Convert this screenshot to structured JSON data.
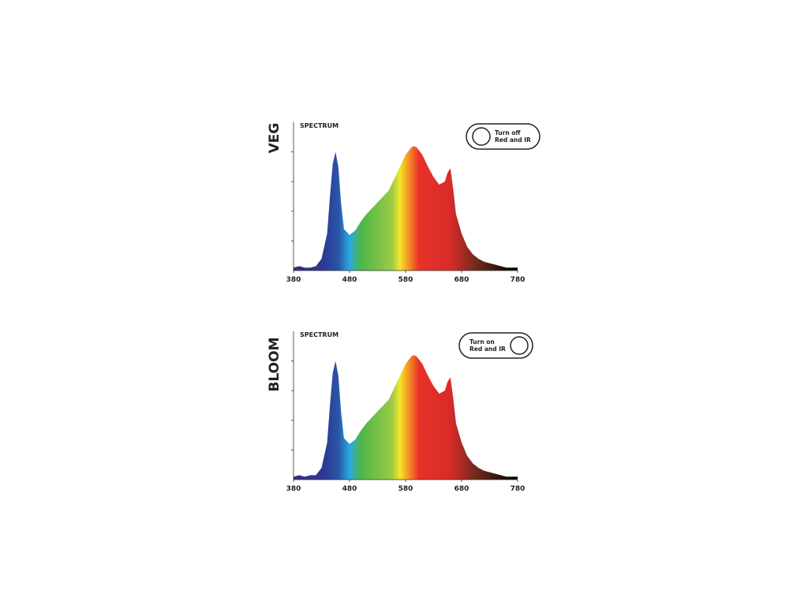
{
  "chart_data": [
    {
      "type": "area",
      "title": "VEG",
      "subtitle": "SPECTRUM",
      "toggle": [
        "Turn off",
        "Red and IR"
      ],
      "toggle_side": "left",
      "x": [
        380,
        390,
        400,
        410,
        420,
        430,
        440,
        445,
        450,
        455,
        460,
        465,
        470,
        480,
        490,
        500,
        510,
        520,
        530,
        540,
        550,
        560,
        570,
        580,
        590,
        595,
        600,
        610,
        620,
        630,
        640,
        650,
        655,
        660,
        665,
        670,
        680,
        690,
        700,
        710,
        720,
        730,
        740,
        750,
        760,
        770,
        780
      ],
      "values": [
        2,
        3,
        2,
        2,
        3,
        8,
        25,
        50,
        72,
        80,
        70,
        45,
        28,
        24,
        27,
        33,
        38,
        42,
        46,
        50,
        54,
        62,
        70,
        78,
        83,
        84,
        83,
        78,
        70,
        63,
        58,
        60,
        66,
        69,
        55,
        38,
        25,
        16,
        11,
        8,
        6,
        5,
        4,
        3,
        2,
        2,
        2
      ],
      "xlim": [
        380,
        780
      ],
      "xticks": [
        380,
        480,
        580,
        680,
        780
      ],
      "ylim": [
        0,
        100
      ],
      "yticks": [
        20,
        40,
        60,
        80
      ]
    },
    {
      "type": "area",
      "title": "BLOOM",
      "subtitle": "SPECTRUM",
      "toggle": [
        "Turn on",
        "Red and IR"
      ],
      "toggle_side": "right",
      "x": [
        380,
        390,
        400,
        410,
        420,
        430,
        440,
        445,
        450,
        455,
        460,
        465,
        470,
        480,
        490,
        500,
        510,
        520,
        530,
        540,
        550,
        560,
        570,
        580,
        590,
        595,
        600,
        610,
        620,
        630,
        640,
        650,
        655,
        660,
        665,
        670,
        680,
        690,
        700,
        710,
        720,
        730,
        740,
        750,
        760,
        770,
        780
      ],
      "values": [
        2,
        3,
        2,
        3,
        3,
        8,
        25,
        50,
        72,
        80,
        70,
        45,
        28,
        24,
        27,
        33,
        38,
        42,
        46,
        50,
        54,
        62,
        70,
        78,
        83,
        84,
        83,
        78,
        70,
        63,
        58,
        60,
        66,
        69,
        55,
        38,
        25,
        16,
        11,
        8,
        6,
        5,
        4,
        3,
        2,
        2,
        2
      ],
      "xlim": [
        380,
        780
      ],
      "xticks": [
        380,
        480,
        580,
        680,
        780
      ],
      "ylim": [
        0,
        100
      ],
      "yticks": [
        20,
        40,
        60,
        80
      ]
    }
  ]
}
